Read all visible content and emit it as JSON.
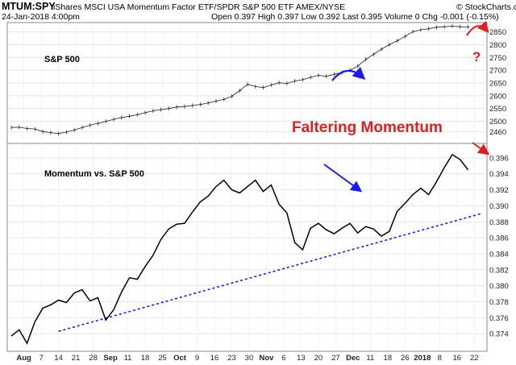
{
  "header": {
    "symbol": "MTUM:SPY",
    "description": "iShares MSCI USA Momentum Factor ETF/SPDR S&P 500 ETF  AMEX/NYSE",
    "credit": "© StockCharts.com",
    "date": "24-Jan-2018 4:00pm",
    "quote": "Open 0.397  High 0.397  Low 0.392  Last 0.395  Volume 0  Chg -0.001 (-0.15%)"
  },
  "annotations": {
    "headline": "Faltering Momentum",
    "question": "?",
    "headline_color": "#e02020",
    "blue": "#1a1aee",
    "red": "#e02020"
  },
  "chart_data": [
    {
      "type": "line",
      "panel": "top",
      "label": "S&P 500",
      "ylim": [
        2420,
        2880
      ],
      "ytick_labels": [
        "2460",
        "2500",
        "2550",
        "2600",
        "2650",
        "2700",
        "2750",
        "2800",
        "2850"
      ],
      "series": [
        {
          "name": "S&P 500",
          "x_index": [
            0,
            5,
            10,
            15,
            20,
            25,
            30,
            35,
            40,
            45,
            50,
            55,
            60,
            65,
            70,
            75,
            80,
            85,
            90,
            95,
            100,
            105,
            110,
            115,
            120,
            125,
            130,
            135,
            140,
            145,
            150,
            155,
            160,
            165,
            170,
            175,
            180,
            185,
            190,
            195,
            200,
            205,
            210,
            215,
            220,
            225,
            230,
            235,
            240,
            245,
            250,
            255,
            260,
            265,
            270,
            275,
            280,
            285,
            290
          ],
          "values": [
            2476,
            2477,
            2472,
            2470,
            2460,
            2456,
            2452,
            2458,
            2466,
            2476,
            2485,
            2492,
            2500,
            2508,
            2515,
            2520,
            2526,
            2534,
            2541,
            2546,
            2550,
            2556,
            2558,
            2562,
            2566,
            2572,
            2579,
            2586,
            2598,
            2620,
            2645,
            2636,
            2632,
            2642,
            2651,
            2648,
            2658,
            2663,
            2672,
            2680,
            2676,
            2684,
            2691,
            2700,
            2716,
            2742,
            2762,
            2782,
            2800,
            2815,
            2832,
            2851,
            2858,
            2862,
            2868,
            2870,
            2872,
            2870,
            2869
          ]
        }
      ]
    },
    {
      "type": "line",
      "panel": "bottom",
      "label": "Momentum vs. S&P 500",
      "ylim": [
        0.372,
        0.3975
      ],
      "ytick_labels": [
        "0.374",
        "0.376",
        "0.378",
        "0.380",
        "0.382",
        "0.384",
        "0.386",
        "0.388",
        "0.390",
        "0.392",
        "0.394",
        "0.396"
      ],
      "x_tick_labels": [
        "Aug",
        "7",
        "14",
        "21",
        "28",
        "Sep",
        "11",
        "18",
        "25",
        "Oct",
        "9",
        "16",
        "23",
        "30",
        "Nov",
        "6",
        "13",
        "20",
        "27",
        "Dec",
        "11",
        "18",
        "26",
        "2018",
        "8",
        "16",
        "22"
      ],
      "series": [
        {
          "name": "MTUM:SPY",
          "x_index": [
            0,
            5,
            10,
            15,
            20,
            25,
            30,
            35,
            40,
            45,
            50,
            55,
            60,
            65,
            70,
            75,
            80,
            85,
            90,
            95,
            100,
            105,
            110,
            115,
            120,
            125,
            130,
            135,
            140,
            145,
            150,
            155,
            160,
            165,
            170,
            175,
            180,
            185,
            190,
            195,
            200,
            205,
            210,
            215,
            220,
            225,
            230,
            235,
            240,
            245,
            250,
            255,
            260,
            265,
            270,
            275,
            280,
            285,
            290
          ],
          "values": [
            0.3737,
            0.3745,
            0.3728,
            0.3755,
            0.3772,
            0.3776,
            0.3782,
            0.3779,
            0.3791,
            0.3795,
            0.3781,
            0.3785,
            0.3757,
            0.377,
            0.3792,
            0.381,
            0.3808,
            0.3824,
            0.3838,
            0.3858,
            0.3871,
            0.3877,
            0.3878,
            0.3892,
            0.3905,
            0.3912,
            0.3924,
            0.3932,
            0.392,
            0.3916,
            0.3924,
            0.3932,
            0.3918,
            0.3926,
            0.3902,
            0.3891,
            0.3854,
            0.3845,
            0.3872,
            0.3878,
            0.387,
            0.3865,
            0.3872,
            0.3878,
            0.3866,
            0.3874,
            0.3871,
            0.3862,
            0.3868,
            0.3893,
            0.3903,
            0.3914,
            0.3922,
            0.3914,
            0.393,
            0.3948,
            0.3964,
            0.3958,
            0.3945
          ]
        },
        {
          "name": "trendline",
          "x_index": [
            30,
            298
          ],
          "values": [
            0.3743,
            0.389
          ]
        }
      ]
    }
  ]
}
